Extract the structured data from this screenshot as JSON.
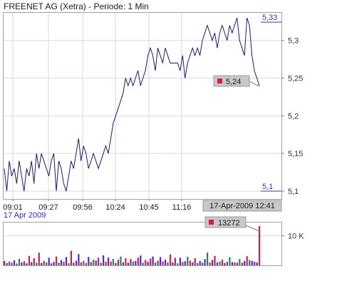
{
  "title": "FREENET AG (Xetra) - Periode: 1 Min",
  "date_label": "17 Apr 2009",
  "colors": {
    "price_line": "#1a1a6e",
    "frame": "#a0a0a0",
    "grid": "#d6d6e8",
    "label_box": "#c8c8c8",
    "marker": "#cc1f4a",
    "vol_red": "#cc1f4a",
    "vol_green": "#1a8a4a",
    "vol_blue": "#4a2ad4",
    "axis_hilite": "#3a3a9e"
  },
  "chart_data": [
    {
      "type": "line",
      "title": "FREENET AG (Xetra) - Periode: 1 Min",
      "x_ticks": [
        "09:01",
        "09:27",
        "09:56",
        "10:24",
        "10:45",
        "11:16",
        "17-Apr-2009 12:41"
      ],
      "y_ticks": [
        "5,1",
        "5,15",
        "5,2",
        "5,25",
        "5,3"
      ],
      "ylim": [
        5.1,
        5.33
      ],
      "y_high_label": "5,33",
      "y_low_label": "5,1",
      "last_value_label": "5,24",
      "grid": true,
      "series": [
        {
          "values": [
            5.13,
            5.1,
            5.14,
            5.12,
            5.13,
            5.11,
            5.14,
            5.12,
            5.1,
            5.13,
            5.12,
            5.14,
            5.11,
            5.15,
            5.13,
            5.15,
            5.14,
            5.13,
            5.12,
            5.14,
            5.15,
            5.1,
            5.14,
            5.13,
            5.11,
            5.1,
            5.12,
            5.14,
            5.13,
            5.15,
            5.17,
            5.14,
            5.16,
            5.15,
            5.13,
            5.14,
            5.15,
            5.14,
            5.13,
            5.14,
            5.15,
            5.16,
            5.15,
            5.17,
            5.19,
            5.2,
            5.21,
            5.22,
            5.23,
            5.25,
            5.24,
            5.25,
            5.24,
            5.25,
            5.26,
            5.24,
            5.25,
            5.26,
            5.28,
            5.29,
            5.28,
            5.26,
            5.29,
            5.28,
            5.27,
            5.29,
            5.28,
            5.27,
            5.27,
            5.27,
            5.27,
            5.26,
            5.28,
            5.25,
            5.27,
            5.28,
            5.29,
            5.28,
            5.29,
            5.28,
            5.3,
            5.31,
            5.32,
            5.31,
            5.3,
            5.31,
            5.29,
            5.31,
            5.32,
            5.31,
            5.3,
            5.32,
            5.31,
            5.32,
            5.33,
            5.3,
            5.29,
            5.28,
            5.33,
            5.32,
            5.28,
            5.26,
            5.25,
            5.24
          ]
        }
      ]
    },
    {
      "type": "bar",
      "y_ticks": [
        "10 K"
      ],
      "last_value_label": "13272",
      "ylim": [
        0,
        14000
      ],
      "values": [
        1500,
        800,
        1300,
        900,
        1700,
        600,
        2200,
        1000,
        1400,
        700,
        3200,
        1100,
        2400,
        900,
        4300,
        800,
        1500,
        1000,
        2600,
        700,
        1200,
        3000,
        900,
        1800,
        1200,
        2800,
        700,
        4900,
        900,
        1600,
        3800,
        1000,
        1500,
        800,
        2800,
        1100,
        1900,
        1600,
        2600,
        900,
        3400,
        1200,
        2600,
        1300,
        2200,
        800,
        1900,
        3000,
        1000,
        2400,
        900,
        2200,
        1300,
        1500,
        2600,
        3300,
        900,
        1800,
        1200,
        2300,
        3000,
        1000,
        1600,
        2800,
        1300,
        1900,
        1000,
        3700,
        1000,
        2500,
        700,
        2600,
        1100,
        1400,
        2900,
        1600,
        1000,
        2400,
        800,
        1500,
        900,
        2100,
        4300,
        1000,
        1800,
        3200,
        1000,
        1300,
        1900,
        800,
        1200,
        2800,
        1100,
        1000,
        900,
        2100,
        900,
        1500,
        3100,
        1800,
        1500,
        1200,
        1000,
        13272
      ],
      "colors": [
        "vol_red",
        "vol_blue",
        "vol_green",
        "vol_red",
        "vol_blue",
        "vol_red",
        "vol_green",
        "vol_blue",
        "vol_red",
        "vol_blue",
        "vol_red",
        "vol_blue",
        "vol_red",
        "vol_green",
        "vol_red",
        "vol_blue",
        "vol_red",
        "vol_green",
        "vol_blue",
        "vol_red",
        "vol_blue",
        "vol_red",
        "vol_green",
        "vol_blue",
        "vol_red",
        "vol_blue",
        "vol_green",
        "vol_red",
        "vol_blue",
        "vol_red",
        "vol_blue",
        "vol_red",
        "vol_green",
        "vol_red",
        "vol_blue",
        "vol_red",
        "vol_green",
        "vol_blue",
        "vol_red",
        "vol_green",
        "vol_blue",
        "vol_red",
        "vol_blue",
        "vol_red",
        "vol_green",
        "vol_blue",
        "vol_red",
        "vol_green",
        "vol_blue",
        "vol_red",
        "vol_blue",
        "vol_red",
        "vol_green",
        "vol_blue",
        "vol_red",
        "vol_blue",
        "vol_green",
        "vol_red",
        "vol_blue",
        "vol_red",
        "vol_blue",
        "vol_green",
        "vol_red",
        "vol_blue",
        "vol_red",
        "vol_blue",
        "vol_green",
        "vol_red",
        "vol_blue",
        "vol_red",
        "vol_green",
        "vol_blue",
        "vol_red",
        "vol_blue",
        "vol_green",
        "vol_red",
        "vol_blue",
        "vol_red",
        "vol_green",
        "vol_blue",
        "vol_red",
        "vol_blue",
        "vol_green",
        "vol_red",
        "vol_blue",
        "vol_red",
        "vol_blue",
        "vol_green",
        "vol_red",
        "vol_blue",
        "vol_red",
        "vol_green",
        "vol_blue",
        "vol_red",
        "vol_blue",
        "vol_green",
        "vol_red",
        "vol_blue",
        "vol_red",
        "vol_green",
        "vol_blue",
        "vol_red",
        "vol_blue",
        "vol_red"
      ]
    }
  ]
}
